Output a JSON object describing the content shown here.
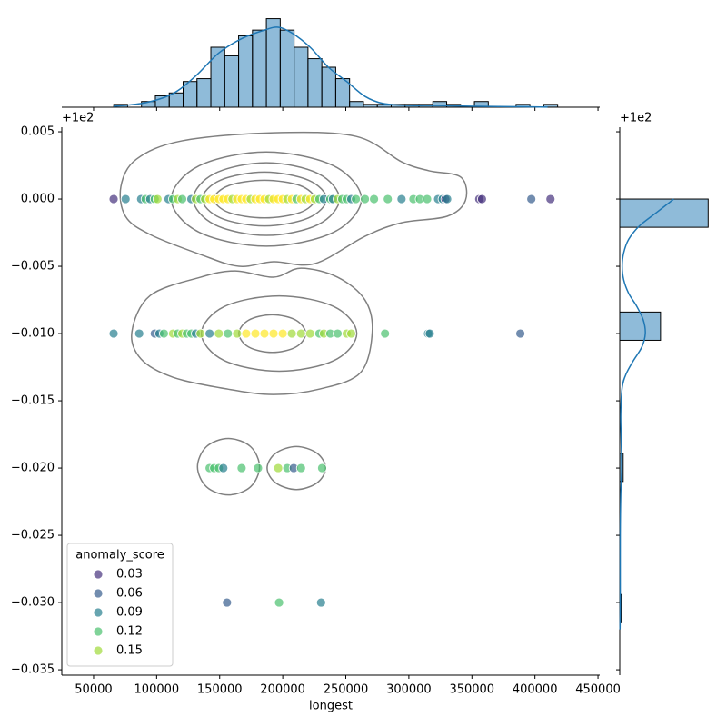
{
  "chart_data": {
    "type": "jointplot",
    "x_label": "longest",
    "y_offset_text": "+1e2",
    "xlim": [
      24800,
      451400
    ],
    "xticks": [
      50000,
      100000,
      150000,
      200000,
      250000,
      300000,
      350000,
      400000,
      450000
    ],
    "ylim": [
      -0.0354,
      0.00534
    ],
    "yticks": [
      0.005,
      {
        "value": 0,
        "label": "0.000"
      },
      {
        "value": -0.005,
        "label": "−0.005"
      },
      {
        "value": -0.01,
        "label": "−0.010"
      },
      {
        "value": -0.015,
        "label": "−0.015"
      },
      {
        "value": -0.02,
        "label": "−0.020"
      },
      {
        "value": -0.025,
        "label": "−0.025"
      },
      {
        "value": -0.03,
        "label": "−0.030"
      },
      {
        "value": -0.035,
        "label": "−0.035"
      }
    ],
    "scatter": {
      "x": [
        65900,
        75400,
        87700,
        91300,
        94900,
        98500,
        100700,
        109400,
        113000,
        116700,
        120300,
        127500,
        131100,
        134800,
        138400,
        142000,
        145600,
        149300,
        152900,
        156500,
        160100,
        163800,
        167400,
        171000,
        174600,
        178300,
        181900,
        185500,
        189100,
        192700,
        196400,
        200000,
        203600,
        207200,
        210900,
        214500,
        218100,
        221700,
        225400,
        229000,
        232600,
        237700,
        239800,
        243500,
        247100,
        250700,
        254300,
        258000,
        265200,
        272400,
        283300,
        294200,
        303600,
        308700,
        314500,
        323200,
        326800,
        329000,
        330400,
        355800,
        358000,
        397100,
        412300,
        65900,
        86200,
        98500,
        102200,
        105800,
        113000,
        116700,
        120300,
        123900,
        127500,
        131100,
        134800,
        142000,
        149300,
        156500,
        163800,
        171000,
        178300,
        185500,
        192700,
        200000,
        207200,
        214500,
        221700,
        229000,
        232600,
        237700,
        243500,
        250700,
        254300,
        281100,
        315200,
        316600,
        388400,
        142000,
        145600,
        149300,
        152900,
        167400,
        180400,
        196400,
        203600,
        208700,
        214500,
        231200,
        155800,
        197100,
        230400
      ],
      "y": [
        0,
        0,
        0,
        0,
        0,
        0,
        0,
        0,
        0,
        0,
        0,
        0,
        0,
        0,
        0,
        0,
        0,
        0,
        0,
        0,
        0,
        0,
        0,
        0,
        0,
        0,
        0,
        0,
        0,
        0,
        0,
        0,
        0,
        0,
        0,
        0,
        0,
        0,
        0,
        0,
        0,
        0,
        0,
        0,
        0,
        0,
        0,
        0,
        0,
        0,
        0,
        0,
        0,
        0,
        0,
        0,
        0,
        0,
        0,
        0,
        0,
        0,
        0,
        -0.01,
        -0.01,
        -0.01,
        -0.01,
        -0.01,
        -0.01,
        -0.01,
        -0.01,
        -0.01,
        -0.01,
        -0.01,
        -0.01,
        -0.01,
        -0.01,
        -0.01,
        -0.01,
        -0.01,
        -0.01,
        -0.01,
        -0.01,
        -0.01,
        -0.01,
        -0.01,
        -0.01,
        -0.01,
        -0.01,
        -0.01,
        -0.01,
        -0.01,
        -0.01,
        -0.01,
        -0.01,
        -0.01,
        -0.01,
        -0.02,
        -0.02,
        -0.02,
        -0.02,
        -0.02,
        -0.02,
        -0.02,
        -0.02,
        -0.02,
        -0.02,
        -0.02,
        -0.03,
        -0.03,
        -0.03
      ],
      "colors": [
        "#46327e",
        "#277f8e",
        "#277f8e",
        "#4ac16d",
        "#277f8e",
        "#4ac16d",
        "#a0da39",
        "#277f8e",
        "#4ac16d",
        "#a0da39",
        "#4ac16d",
        "#277f8e",
        "#a0da39",
        "#4ac16d",
        "#a0da39",
        "#fde725",
        "#fde725",
        "#fde725",
        "#fde725",
        "#fde725",
        "#a0da39",
        "#fde725",
        "#fde725",
        "#fde725",
        "#a0da39",
        "#fde725",
        "#fde725",
        "#fde725",
        "#a0da39",
        "#fde725",
        "#fde725",
        "#fde725",
        "#a0da39",
        "#fde725",
        "#4ac16d",
        "#fde725",
        "#a0da39",
        "#fde725",
        "#a0da39",
        "#4ac16d",
        "#277f8e",
        "#4ac16d",
        "#277f8e",
        "#a0da39",
        "#4ac16d",
        "#4ac16d",
        "#277f8e",
        "#4ac16d",
        "#4ac16d",
        "#4ac16d",
        "#4ac16d",
        "#277f8e",
        "#4ac16d",
        "#4ac16d",
        "#4ac16d",
        "#277f8e",
        "#277f8e",
        "#46327e",
        "#277f8e",
        "#46327e",
        "#46327e",
        "#365c8d",
        "#46327e",
        "#277f8e",
        "#277f8e",
        "#365c8d",
        "#277f8e",
        "#4ac16d",
        "#a0da39",
        "#4ac16d",
        "#a0da39",
        "#4ac16d",
        "#4ac16d",
        "#277f8e",
        "#a0da39",
        "#277f8e",
        "#a0da39",
        "#4ac16d",
        "#a0da39",
        "#fde725",
        "#fde725",
        "#fde725",
        "#fde725",
        "#fde725",
        "#a0da39",
        "#a0da39",
        "#a0da39",
        "#4ac16d",
        "#a0da39",
        "#4ac16d",
        "#4ac16d",
        "#a0da39",
        "#a0da39",
        "#4ac16d",
        "#277f8e",
        "#277f8e",
        "#365c8d",
        "#4ac16d",
        "#4ac16d",
        "#4ac16d",
        "#277f8e",
        "#4ac16d",
        "#4ac16d",
        "#a0da39",
        "#4ac16d",
        "#365c8d",
        "#4ac16d",
        "#4ac16d",
        "#365c8d",
        "#4ac16d",
        "#277f8e"
      ]
    },
    "contours": {
      "color": "#808080",
      "lines": [
        {
          "x": [
            71700,
            84100,
            120300,
            192700,
            258000,
            294200,
            316000,
            341300,
            344900,
            330400,
            294200,
            265200,
            225400,
            192700,
            165200,
            134800,
            94900,
            75300
          ],
          "y": [
            0.00095,
            0.00297,
            0.00433,
            0.00493,
            0.00466,
            0.00277,
            0.0021,
            0.00162,
            -0.0001,
            -0.00128,
            -0.00176,
            -0.00277,
            -0.0048,
            -0.00466,
            -0.005,
            -0.00412,
            -0.00264,
            -0.00128
          ]
        },
        {
          "x": [
            262400,
            240300,
            187000,
            133700,
            111600,
            133700,
            187000,
            240300
          ],
          "y": [
            0,
            0.00247,
            0.0035,
            0.00247,
            0,
            -0.00247,
            -0.0035,
            -0.00247
          ]
        },
        {
          "x": [
            245000,
            228000,
            187000,
            146000,
            129000,
            146000,
            187000,
            228000
          ],
          "y": [
            0,
            0.0019,
            0.0027,
            0.0019,
            0,
            -0.0019,
            -0.0027,
            -0.0019
          ]
        },
        {
          "x": [
            234800,
            220400,
            185500,
            150600,
            136200,
            150600,
            185500,
            220400
          ],
          "y": [
            0,
            0.0014,
            0.002,
            0.0014,
            0,
            -0.0014,
            -0.002,
            -0.0014
          ]
        },
        {
          "x": [
            225500,
            213800,
            185500,
            157200,
            145500,
            157200,
            185500,
            213800
          ],
          "y": [
            0,
            0.001,
            0.0014,
            0.001,
            0,
            -0.001,
            -0.0014,
            -0.001
          ]
        },
        {
          "x": [
            80400,
            94900,
            134800,
            162300,
            192700,
            214500,
            243500,
            265200,
            271000,
            261600,
            229000,
            192700,
            156500,
            113000,
            87700
          ],
          "y": [
            -0.00987,
            -0.00717,
            -0.00581,
            -0.00534,
            -0.00581,
            -0.00514,
            -0.00581,
            -0.0075,
            -0.00987,
            -0.01291,
            -0.01413,
            -0.01453,
            -0.01413,
            -0.01325,
            -0.0119
          ]
        },
        {
          "x": [
            258700,
            240700,
            197100,
            153500,
            135500,
            153500,
            197100,
            240700
          ],
          "y": [
            -0.01,
            -0.008,
            -0.0072,
            -0.008,
            -0.01,
            -0.012,
            -0.0128,
            -0.012
          ]
        },
        {
          "x": [
            218200,
            210400,
            191700,
            173000,
            165200,
            173000,
            191700,
            210400
          ],
          "y": [
            -0.01,
            -0.009,
            -0.0086,
            -0.009,
            -0.01,
            -0.011,
            -0.0114,
            -0.011
          ]
        },
        {
          "x": [
            181600,
            174400,
            157000,
            139600,
            132400,
            139600,
            157000,
            174400
          ],
          "y": [
            -0.0199,
            -0.0184,
            -0.0178,
            -0.0184,
            -0.0199,
            -0.0214,
            -0.022,
            -0.0214
          ]
        },
        {
          "x": [
            234000,
            227200,
            210800,
            194400,
            187600,
            194400,
            210800,
            227200
          ],
          "y": [
            -0.02,
            -0.0189,
            -0.0184,
            -0.0189,
            -0.02,
            -0.0211,
            -0.0216,
            -0.0211
          ]
        }
      ]
    },
    "legend": {
      "title": "anomaly_score",
      "loc": "lower left",
      "items": [
        {
          "label": "0.03",
          "color": "#46327e"
        },
        {
          "label": "0.06",
          "color": "#365c8d"
        },
        {
          "label": "0.09",
          "color": "#277f8e"
        },
        {
          "label": "0.12",
          "color": "#4ac16d"
        },
        {
          "label": "0.15",
          "color": "#a0da39"
        }
      ]
    },
    "top_hist": {
      "color": "#1f77b4",
      "ylim": [
        0,
        35
      ],
      "bins": [
        66000,
        77000,
        88000,
        99000,
        110000,
        121000,
        132000,
        143000,
        154000,
        165000,
        176000,
        187000,
        198000,
        209000,
        220000,
        231000,
        242000,
        253000,
        264000,
        275000,
        286000,
        297000,
        308000,
        319000,
        330000,
        341000,
        352000,
        363000,
        374000,
        385000,
        396000,
        407000,
        418000
      ],
      "counts": [
        1,
        0,
        2,
        4,
        5,
        9,
        10,
        21,
        18,
        25,
        27,
        31,
        27,
        21,
        17,
        14,
        10,
        2,
        1,
        1,
        1,
        1,
        1,
        2,
        1,
        0,
        2,
        0,
        0,
        1,
        0,
        1
      ],
      "kde": {
        "x": [
          65900,
          91300,
          113000,
          131100,
          149300,
          167400,
          185500,
          196400,
          207200,
          221700,
          236200,
          250700,
          265200,
          279700,
          301400,
          323200,
          352000,
          381000,
          410000
        ],
        "values": [
          0.3,
          1.6,
          4.8,
          11,
          19,
          24,
          27,
          28,
          26,
          21,
          14,
          9,
          3.8,
          1.3,
          0.6,
          0.6,
          0.3,
          0.2,
          0.05
        ]
      }
    },
    "right_hist": {
      "color": "#1f77b4",
      "xlim": [
        0,
        185
      ],
      "bins": [
        -0.0315,
        -0.0294,
        -0.0273,
        -0.0252,
        -0.0231,
        -0.021,
        -0.0189,
        -0.0168,
        -0.0147,
        -0.0126,
        -0.0105,
        -0.0084,
        -0.0063,
        -0.0042,
        -0.0021,
        0
      ],
      "counts": [
        3,
        0,
        0,
        0,
        0,
        7,
        0,
        0,
        0,
        0,
        83,
        0,
        0,
        0,
        180
      ],
      "kde": {
        "y": [
          0,
          -0.001,
          -0.002,
          -0.003,
          -0.004,
          -0.005,
          -0.006,
          -0.007,
          -0.008,
          -0.009,
          -0.01,
          -0.011,
          -0.012,
          -0.013,
          -0.014,
          -0.016,
          -0.018,
          -0.02,
          -0.022,
          -0.025,
          -0.03,
          -0.032
        ],
        "values": [
          110,
          75,
          40,
          18,
          8,
          5,
          8,
          18,
          35,
          48,
          52,
          45,
          28,
          13,
          5,
          2,
          3,
          4,
          2,
          1,
          1,
          0.5
        ]
      }
    }
  }
}
